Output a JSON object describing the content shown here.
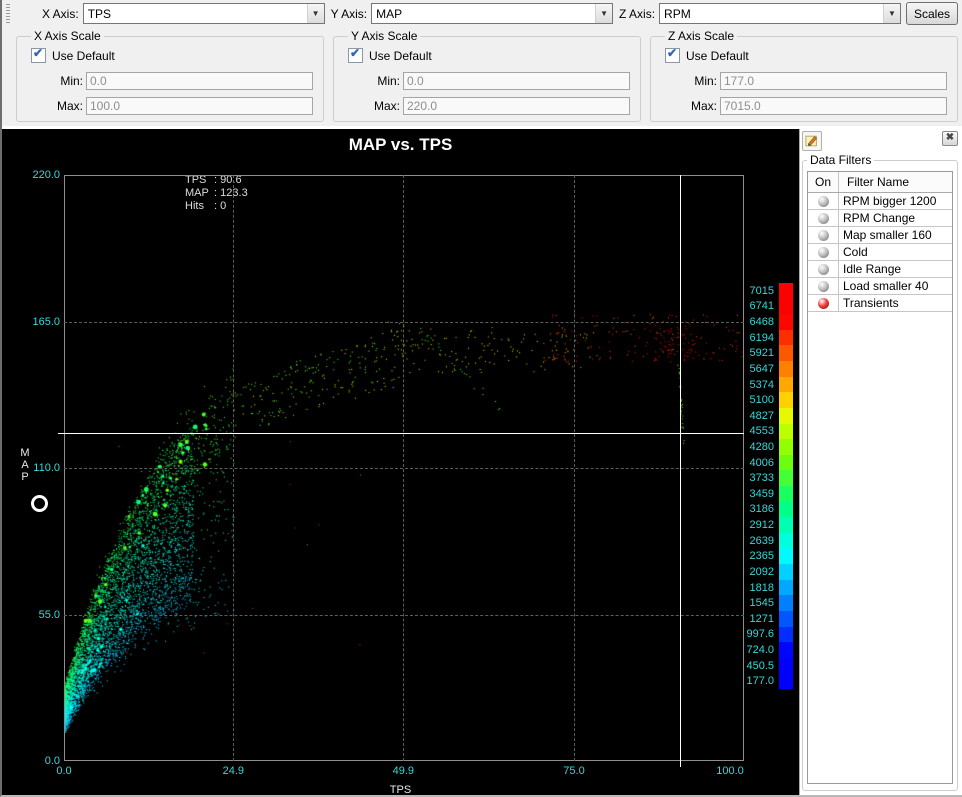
{
  "toolbar": {
    "x_axis_label": "X Axis:",
    "x_axis_value": "TPS",
    "y_axis_label": "Y Axis:",
    "y_axis_value": "MAP",
    "z_axis_label": "Z Axis:",
    "z_axis_value": "RPM",
    "scales_button": "Scales"
  },
  "scale_panels": [
    {
      "title": "X Axis Scale",
      "use_default_label": "Use Default",
      "checked": true,
      "min_label": "Min:",
      "min": "0.0",
      "max_label": "Max:",
      "max": "100.0"
    },
    {
      "title": "Y Axis Scale",
      "use_default_label": "Use Default",
      "checked": true,
      "min_label": "Min:",
      "min": "0.0",
      "max_label": "Max:",
      "max": "220.0"
    },
    {
      "title": "Z Axis Scale",
      "use_default_label": "Use Default",
      "checked": true,
      "min_label": "Min:",
      "min": "177.0",
      "max_label": "Max:",
      "max": "7015.0"
    }
  ],
  "filters_panel": {
    "title": "Data Filters",
    "columns": [
      "On",
      "Filter Name"
    ],
    "rows": [
      {
        "name": "RPM bigger 1200",
        "on_color": "#c2c2c2",
        "on_dark": "#6e6e6e"
      },
      {
        "name": "RPM Change",
        "on_color": "#c2c2c2",
        "on_dark": "#6e6e6e"
      },
      {
        "name": "Map smaller 160",
        "on_color": "#c2c2c2",
        "on_dark": "#6e6e6e"
      },
      {
        "name": "Cold",
        "on_color": "#c2c2c2",
        "on_dark": "#6e6e6e"
      },
      {
        "name": "Idle Range",
        "on_color": "#c2c2c2",
        "on_dark": "#6e6e6e"
      },
      {
        "name": "Load smaller 40",
        "on_color": "#c2c2c2",
        "on_dark": "#6e6e6e"
      },
      {
        "name": "Transients",
        "on_color": "#f04040",
        "on_dark": "#8f0f0f"
      }
    ]
  },
  "chart_data": {
    "type": "scatter",
    "title": "MAP vs. TPS",
    "xlabel": "TPS",
    "ylabel": "MAP",
    "zlabel": "RPM",
    "xlim": [
      0,
      100
    ],
    "ylim": [
      0,
      220
    ],
    "grid": "dashed",
    "x_ticks": [
      0.0,
      24.9,
      49.9,
      75.0,
      100.0
    ],
    "x_tick_labels": [
      "0.0",
      "24.9",
      "49.9",
      "75.0",
      "100.0"
    ],
    "y_ticks": [
      220,
      165,
      110,
      55,
      0
    ],
    "y_tick_labels": [
      "220.0",
      "165.0",
      "110.0",
      "55.0",
      "0.0"
    ],
    "readout": [
      [
        "TPS",
        "90.6"
      ],
      [
        "MAP",
        "123.3"
      ],
      [
        "Hits",
        "0"
      ]
    ],
    "crosshair": {
      "tps": 90.6,
      "map": 123.3
    },
    "colorbar": {
      "min": 177.0,
      "max": 7015.0,
      "labels": [
        "7015",
        "6741",
        "6468",
        "6194",
        "5921",
        "5647",
        "5374",
        "5100",
        "4827",
        "4553",
        "4280",
        "4006",
        "3733",
        "3459",
        "3186",
        "2912",
        "2639",
        "2365",
        "2092",
        "1818",
        "1545",
        "1271",
        "997.6",
        "724.0",
        "450.5",
        "177.0"
      ]
    },
    "accent_tick_color": "#35d8d8",
    "seed": 20259,
    "curve": {
      "base": 25,
      "amp": 133,
      "tau": 15
    },
    "clusters": [
      {
        "kind": "cloud",
        "count": 4200,
        "tmin": 0,
        "tmax": 19,
        "tpow": 1.7,
        "slo": 0.5,
        "shi": 1.06,
        "rlo": 2000,
        "rhi": 3500,
        "size": 1
      },
      {
        "kind": "cloud",
        "count": 800,
        "tmin": 0,
        "tmax": 25,
        "tpow": 1.3,
        "slo": 0.42,
        "shi": 1.12,
        "rlo": 2100,
        "rhi": 3900,
        "size": 1
      },
      {
        "kind": "blobs",
        "count": 42,
        "tmin": 3,
        "tmax": 21,
        "mlo": 0.88,
        "mhi": 1.05,
        "rlo": 3200,
        "rhi": 4100,
        "smin": 2,
        "smax": 5
      },
      {
        "kind": "blobs",
        "count": 26,
        "tmin": 1,
        "tmax": 12,
        "mlo": 0.55,
        "mhi": 0.85,
        "rlo": 2400,
        "rhi": 2950,
        "smin": 2,
        "smax": 4
      },
      {
        "kind": "band",
        "count": 240,
        "tmin": 16,
        "tmax": 46,
        "olo": -14,
        "ohi": 6,
        "rlo": 3300,
        "rhi": 5000,
        "size": 1
      },
      {
        "kind": "box",
        "count": 40,
        "tmin": 44,
        "tmax": 50,
        "mlo": 138,
        "mhi": 166,
        "rlo": 4200,
        "rhi": 4900,
        "size": 1
      },
      {
        "kind": "box",
        "count": 130,
        "tmin": 48,
        "tmax": 78,
        "mlo": 146,
        "mhi": 163,
        "rlo": 4500,
        "rhi": 5400,
        "size": 1
      },
      {
        "kind": "box",
        "count": 150,
        "tmin": 70,
        "tmax": 100,
        "mlo": 150,
        "mhi": 168,
        "rlo": 5600,
        "rhi": 6900,
        "size": 1
      },
      {
        "kind": "box",
        "count": 55,
        "tmin": 85,
        "tmax": 93,
        "mlo": 150,
        "mhi": 164,
        "rlo": 6400,
        "rhi": 7015,
        "size": 1
      },
      {
        "kind": "line",
        "count": 26,
        "t0": 52,
        "m0": 162,
        "t1": 64,
        "m1": 133,
        "jit": 1.2,
        "rlo": 3500,
        "rhi": 4200,
        "size": 1
      },
      {
        "kind": "line",
        "count": 26,
        "t0": 90.3,
        "m0": 150,
        "t1": 91.2,
        "m1": 116,
        "jit": 0.7,
        "rlo": 3700,
        "rhi": 4400,
        "size": 1
      },
      {
        "kind": "box",
        "count": 22,
        "tmin": 8,
        "tmax": 44,
        "mlo": 40,
        "mhi": 128,
        "rlo": 5700,
        "rhi": 6800,
        "size": 1
      }
    ]
  }
}
